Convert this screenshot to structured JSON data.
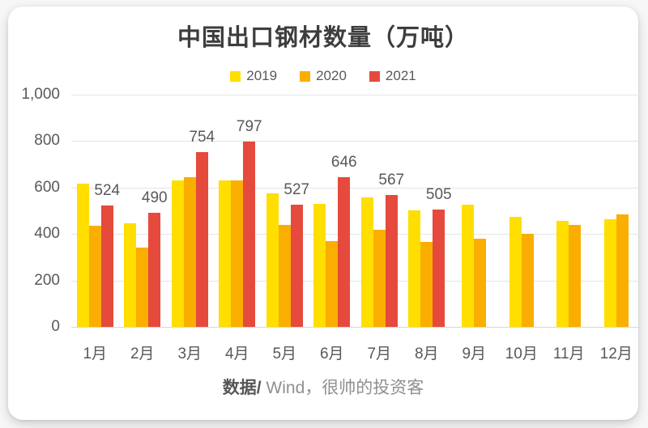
{
  "chart_data": {
    "type": "bar",
    "title": "中国出口钢材数量（万吨）",
    "ylabel": "",
    "xlabel": "",
    "ylim": [
      0,
      1000
    ],
    "grid": true,
    "legend_position": "top",
    "yticks": [
      {
        "value": 0,
        "label": "0"
      },
      {
        "value": 200,
        "label": "200"
      },
      {
        "value": 400,
        "label": "400"
      },
      {
        "value": 600,
        "label": "600"
      },
      {
        "value": 800,
        "label": "800"
      },
      {
        "value": 1000,
        "label": "1,000"
      }
    ],
    "categories": [
      "1月",
      "2月",
      "3月",
      "4月",
      "5月",
      "6月",
      "7月",
      "8月",
      "9月",
      "10月",
      "11月",
      "12月"
    ],
    "series": [
      {
        "name": "2019",
        "color": "#FFDE00",
        "show_labels": false,
        "values": [
          617,
          447,
          632,
          631,
          574,
          528,
          556,
          500,
          527,
          475,
          455,
          465
        ]
      },
      {
        "name": "2020",
        "color": "#FAAE00",
        "show_labels": false,
        "values": [
          436,
          341,
          646,
          630,
          440,
          368,
          417,
          366,
          381,
          400,
          438,
          484
        ]
      },
      {
        "name": "2021",
        "color": "#E54A3C",
        "show_labels": true,
        "values": [
          524,
          490,
          754,
          797,
          527,
          646,
          567,
          505,
          null,
          null,
          null,
          null
        ]
      }
    ]
  },
  "footer": {
    "prefix": "数据/",
    "rest": " Wind，很帅的投资客"
  }
}
